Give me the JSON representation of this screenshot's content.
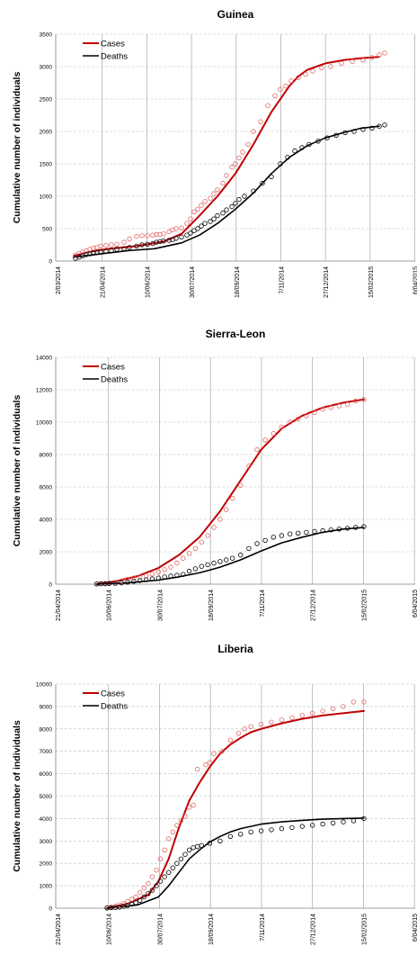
{
  "colors": {
    "cases": "#c00000",
    "deaths": "#000000",
    "cases_marker": "#e06666",
    "deaths_marker": "#000000",
    "grid": "#bfbfbf"
  },
  "chart_data": [
    {
      "type": "line",
      "title": "Guinea",
      "ylabel": "Cumulative number of individuals",
      "ylim": [
        0,
        3500
      ],
      "yticks": [
        0,
        500,
        1000,
        1500,
        2000,
        2500,
        3000,
        3500
      ],
      "x_dates": [
        "2/03/2014",
        "21/04/2014",
        "10/06/2014",
        "30/07/2014",
        "18/09/2014",
        "7/11/2014",
        "27/12/2014",
        "15/02/2015",
        "6/04/2015"
      ],
      "xlim_days": [
        0,
        400
      ],
      "grid": true,
      "legend": "top-left",
      "series": [
        {
          "name": "Cases",
          "kind": "model_line",
          "x_days": [
            20,
            40,
            60,
            90,
            120,
            140,
            160,
            180,
            200,
            220,
            240,
            260,
            270,
            280,
            300,
            320,
            340,
            360
          ],
          "y": [
            80,
            150,
            190,
            230,
            300,
            420,
            700,
            1000,
            1350,
            1800,
            2300,
            2700,
            2850,
            2950,
            3050,
            3100,
            3130,
            3150
          ]
        },
        {
          "name": "Deaths",
          "kind": "model_line",
          "x_days": [
            20,
            50,
            80,
            110,
            140,
            160,
            180,
            200,
            220,
            240,
            260,
            280,
            300,
            320,
            340,
            360
          ],
          "y": [
            60,
            110,
            160,
            190,
            280,
            400,
            580,
            800,
            1050,
            1350,
            1600,
            1780,
            1900,
            1980,
            2050,
            2080
          ]
        },
        {
          "name": "Cases",
          "kind": "observed",
          "x_days": [
            22,
            26,
            30,
            34,
            38,
            42,
            46,
            50,
            56,
            62,
            68,
            76,
            82,
            90,
            96,
            102,
            108,
            112,
            116,
            120,
            126,
            130,
            134,
            140,
            146,
            150,
            154,
            158,
            162,
            166,
            172,
            176,
            180,
            186,
            190,
            196,
            200,
            204,
            208,
            214,
            220,
            228,
            236,
            244,
            250,
            256,
            262,
            270,
            278,
            286,
            296,
            306,
            318,
            330,
            342,
            352,
            360,
            366
          ],
          "y": [
            90,
            120,
            140,
            160,
            180,
            200,
            210,
            230,
            240,
            250,
            260,
            290,
            340,
            380,
            390,
            390,
            400,
            410,
            410,
            420,
            450,
            480,
            500,
            510,
            580,
            650,
            760,
            800,
            860,
            920,
            970,
            1040,
            1100,
            1200,
            1320,
            1450,
            1500,
            1590,
            1680,
            1800,
            2000,
            2150,
            2400,
            2550,
            2650,
            2700,
            2780,
            2830,
            2880,
            2930,
            2980,
            3000,
            3050,
            3080,
            3100,
            3140,
            3180,
            3210
          ]
        },
        {
          "name": "Deaths",
          "kind": "observed",
          "x_days": [
            22,
            26,
            30,
            34,
            38,
            42,
            46,
            50,
            56,
            62,
            68,
            76,
            82,
            90,
            96,
            102,
            108,
            112,
            116,
            120,
            126,
            130,
            134,
            140,
            146,
            150,
            154,
            158,
            162,
            166,
            172,
            176,
            180,
            186,
            190,
            196,
            200,
            204,
            210,
            220,
            230,
            240,
            250,
            258,
            266,
            274,
            282,
            292,
            302,
            312,
            322,
            332,
            342,
            352,
            360,
            366
          ],
          "y": [
            40,
            60,
            80,
            100,
            110,
            120,
            130,
            140,
            150,
            160,
            180,
            190,
            210,
            230,
            250,
            260,
            270,
            290,
            300,
            310,
            320,
            330,
            350,
            370,
            400,
            430,
            470,
            500,
            540,
            580,
            610,
            650,
            700,
            740,
            790,
            840,
            890,
            950,
            1000,
            1080,
            1200,
            1300,
            1500,
            1600,
            1700,
            1750,
            1800,
            1850,
            1900,
            1940,
            1980,
            2000,
            2030,
            2050,
            2080,
            2100
          ]
        }
      ]
    },
    {
      "type": "line",
      "title": "Sierra-Leon",
      "ylabel": "Cumulative number of individuals",
      "ylim": [
        0,
        14000
      ],
      "yticks": [
        0,
        2000,
        4000,
        6000,
        8000,
        10000,
        12000,
        14000
      ],
      "x_dates": [
        "21/04/2014",
        "10/06/2014",
        "30/07/2014",
        "18/09/2014",
        "7/11/2014",
        "27/12/2014",
        "15/02/2015",
        "6/04/2015"
      ],
      "xlim_days": [
        0,
        350
      ],
      "grid": true,
      "legend": "top-left",
      "series": [
        {
          "name": "Cases",
          "kind": "model_line",
          "x_days": [
            40,
            60,
            80,
            100,
            120,
            140,
            160,
            180,
            200,
            220,
            240,
            260,
            280,
            300
          ],
          "y": [
            0,
            200,
            500,
            1000,
            1800,
            2900,
            4500,
            6400,
            8300,
            9600,
            10400,
            10900,
            11200,
            11400
          ]
        },
        {
          "name": "Deaths",
          "kind": "model_line",
          "x_days": [
            40,
            70,
            100,
            120,
            140,
            160,
            180,
            200,
            220,
            240,
            260,
            280,
            300
          ],
          "y": [
            0,
            80,
            250,
            450,
            700,
            1050,
            1500,
            2050,
            2550,
            2900,
            3200,
            3400,
            3500
          ]
        },
        {
          "name": "Cases",
          "kind": "observed",
          "x_days": [
            40,
            44,
            48,
            52,
            58,
            64,
            70,
            76,
            82,
            88,
            94,
            100,
            106,
            112,
            118,
            124,
            130,
            136,
            142,
            148,
            154,
            160,
            166,
            172,
            180,
            188,
            196,
            204,
            212,
            220,
            228,
            236,
            244,
            252,
            260,
            268,
            276,
            284,
            292,
            300
          ],
          "y": [
            20,
            30,
            40,
            60,
            100,
            200,
            300,
            380,
            450,
            520,
            620,
            750,
            900,
            1050,
            1300,
            1600,
            1900,
            2200,
            2600,
            3000,
            3500,
            4000,
            4600,
            5300,
            6100,
            7300,
            8300,
            8900,
            9300,
            9700,
            10000,
            10200,
            10400,
            10600,
            10800,
            10900,
            11000,
            11100,
            11300,
            11400
          ]
        },
        {
          "name": "Deaths",
          "kind": "observed",
          "x_days": [
            40,
            44,
            48,
            52,
            58,
            64,
            70,
            76,
            82,
            88,
            94,
            100,
            106,
            112,
            118,
            124,
            130,
            136,
            142,
            148,
            154,
            160,
            166,
            172,
            180,
            188,
            196,
            204,
            212,
            220,
            228,
            236,
            244,
            252,
            260,
            268,
            276,
            284,
            292,
            300
          ],
          "y": [
            10,
            20,
            30,
            40,
            50,
            80,
            120,
            180,
            220,
            270,
            320,
            380,
            450,
            500,
            550,
            600,
            800,
            950,
            1100,
            1200,
            1300,
            1400,
            1500,
            1600,
            1800,
            2200,
            2500,
            2700,
            2900,
            3000,
            3100,
            3150,
            3200,
            3250,
            3300,
            3350,
            3400,
            3450,
            3500,
            3550
          ]
        }
      ]
    },
    {
      "type": "line",
      "title": "Liberia",
      "ylabel": "Cumulative number of individuals",
      "ylim": [
        0,
        10000
      ],
      "yticks": [
        0,
        1000,
        2000,
        3000,
        4000,
        5000,
        6000,
        7000,
        8000,
        9000,
        10000
      ],
      "x_dates": [
        "21/04/2014",
        "10/06/2014",
        "30/07/2014",
        "18/09/2014",
        "7/11/2014",
        "27/12/2014",
        "15/02/2015",
        "6/04/2015"
      ],
      "xlim_days": [
        0,
        350
      ],
      "grid": true,
      "legend": "top-left",
      "series": [
        {
          "name": "Cases",
          "kind": "model_line",
          "x_days": [
            50,
            70,
            90,
            100,
            110,
            120,
            130,
            140,
            150,
            160,
            170,
            180,
            190,
            200,
            220,
            240,
            260,
            280,
            300
          ],
          "y": [
            0,
            200,
            600,
            1200,
            2200,
            3600,
            4800,
            5600,
            6300,
            6900,
            7300,
            7600,
            7850,
            8000,
            8250,
            8450,
            8600,
            8700,
            8800
          ]
        },
        {
          "name": "Deaths",
          "kind": "model_line",
          "x_days": [
            50,
            80,
            100,
            110,
            120,
            130,
            140,
            150,
            160,
            170,
            180,
            190,
            200,
            220,
            240,
            260,
            280,
            300
          ],
          "y": [
            0,
            150,
            500,
            1000,
            1600,
            2200,
            2600,
            2950,
            3200,
            3400,
            3550,
            3650,
            3750,
            3850,
            3920,
            3970,
            4000,
            4020
          ]
        },
        {
          "name": "Cases",
          "kind": "observed",
          "x_days": [
            50,
            54,
            58,
            62,
            66,
            70,
            74,
            78,
            82,
            86,
            90,
            94,
            98,
            102,
            106,
            110,
            114,
            118,
            122,
            126,
            130,
            134,
            138,
            146,
            150,
            154,
            162,
            170,
            178,
            184,
            190,
            200,
            210,
            220,
            230,
            240,
            250,
            260,
            270,
            280,
            290,
            300
          ],
          "y": [
            20,
            50,
            100,
            150,
            200,
            300,
            400,
            500,
            700,
            900,
            1100,
            1400,
            1700,
            2200,
            2600,
            3100,
            3400,
            3700,
            3900,
            4100,
            4500,
            4600,
            6200,
            6400,
            6500,
            6900,
            7000,
            7500,
            7800,
            8000,
            8100,
            8200,
            8300,
            8400,
            8500,
            8600,
            8700,
            8800,
            8900,
            9000,
            9200,
            9200
          ]
        },
        {
          "name": "Deaths",
          "kind": "observed",
          "x_days": [
            50,
            54,
            58,
            62,
            66,
            70,
            74,
            78,
            82,
            86,
            90,
            94,
            98,
            102,
            106,
            110,
            114,
            118,
            122,
            126,
            130,
            134,
            138,
            142,
            150,
            160,
            170,
            180,
            190,
            200,
            210,
            220,
            230,
            240,
            250,
            260,
            270,
            280,
            290,
            300
          ],
          "y": [
            10,
            20,
            30,
            50,
            80,
            120,
            180,
            250,
            350,
            500,
            650,
            800,
            1000,
            1200,
            1400,
            1600,
            1800,
            2000,
            2200,
            2400,
            2600,
            2700,
            2750,
            2800,
            2900,
            3000,
            3200,
            3300,
            3400,
            3450,
            3500,
            3550,
            3600,
            3650,
            3700,
            3750,
            3800,
            3850,
            3900,
            4000
          ]
        }
      ]
    }
  ]
}
